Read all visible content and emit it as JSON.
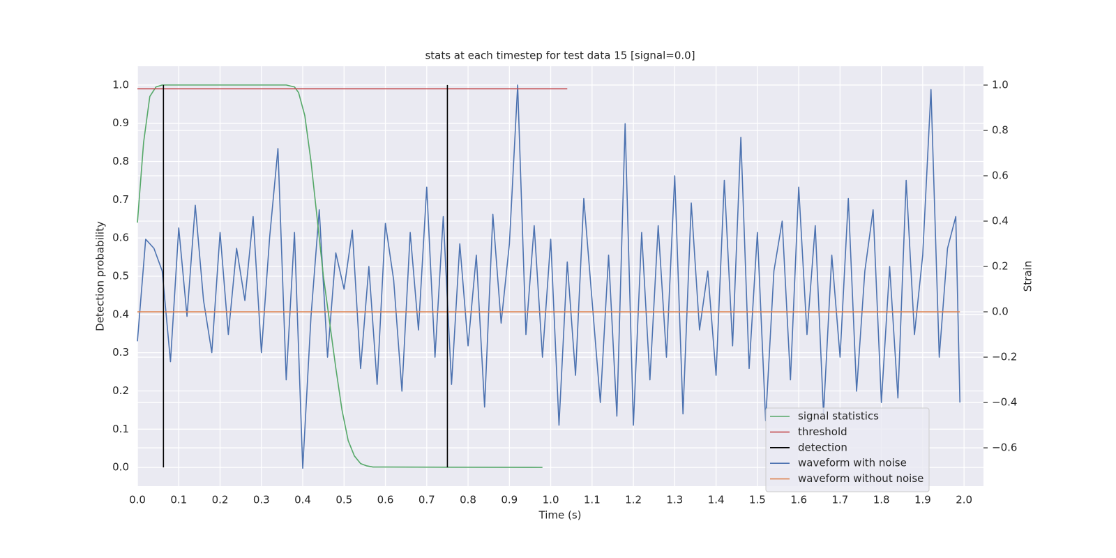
{
  "chart_data": {
    "type": "line",
    "title": "stats at each timestep for test data 15 [signal=0.0]",
    "x_label": "Time (s)",
    "y_label": "Detection probability",
    "y2_label": "Strain",
    "xlim": [
      0,
      2.047
    ],
    "ylim": [
      -0.049,
      1.049
    ],
    "y2lim": [
      -0.769,
      1.083
    ],
    "xticks": [
      {
        "value": 0,
        "label": "0.0"
      },
      0.1,
      0.2,
      0.3,
      0.4,
      0.5,
      0.6,
      0.7,
      0.8,
      0.9,
      {
        "value": 1,
        "label": "1.0"
      },
      1.1,
      1.2,
      1.3,
      1.4,
      1.5,
      1.6,
      1.7,
      1.8,
      1.9,
      {
        "value": 2,
        "label": "2.0"
      }
    ],
    "yticks": [
      {
        "value": 0,
        "label": "0.0"
      },
      0.1,
      0.2,
      0.3,
      0.4,
      0.5,
      0.6,
      0.7,
      0.8,
      0.9,
      {
        "value": 1,
        "label": "1.0"
      }
    ],
    "y2ticks": [
      {
        "value": -0.6,
        "label": "−0.6"
      },
      {
        "value": -0.4,
        "label": "−0.4"
      },
      {
        "value": -0.2,
        "label": "−0.2"
      },
      {
        "value": 0,
        "label": "0.0"
      },
      0.2,
      0.4,
      0.6,
      0.8,
      {
        "value": 1,
        "label": "1.0"
      }
    ],
    "grid": true,
    "legend": "lower right",
    "series": [
      {
        "name": "signal statistics",
        "color": "#55a868",
        "x": [
          0,
          0.015,
          0.03,
          0.045,
          0.06,
          0.1,
          0.2,
          0.3,
          0.36,
          0.38,
          0.39,
          0.405,
          0.42,
          0.435,
          0.45,
          0.465,
          0.48,
          0.495,
          0.51,
          0.525,
          0.54,
          0.555,
          0.57,
          0.6,
          0.98
        ],
        "values": [
          0.64,
          0.85,
          0.97,
          0.995,
          1.0,
          1.0,
          1.0,
          1.0,
          1.0,
          0.995,
          0.98,
          0.92,
          0.8,
          0.65,
          0.5,
          0.38,
          0.26,
          0.15,
          0.07,
          0.03,
          0.01,
          0.004,
          0.001,
          0.001,
          0
        ]
      },
      {
        "name": "threshold",
        "color": "#c44e52",
        "x": [
          0,
          1.04
        ],
        "values": [
          0.99,
          0.99
        ]
      },
      {
        "name": "detection",
        "color": "#000000",
        "x": [
          0.063,
          0.063,
          0.063,
          0.75,
          0.75
        ],
        "values": [
          0,
          1,
          null,
          0,
          1
        ]
      },
      {
        "name": "waveform with noise",
        "color": "#4c72b0",
        "axis": "y2",
        "x": [
          0,
          0.02,
          0.04,
          0.06,
          0.08,
          0.1,
          0.12,
          0.14,
          0.16,
          0.18,
          0.2,
          0.22,
          0.24,
          0.26,
          0.28,
          0.3,
          0.32,
          0.34,
          0.36,
          0.38,
          0.4,
          0.42,
          0.44,
          0.46,
          0.48,
          0.5,
          0.52,
          0.54,
          0.56,
          0.58,
          0.6,
          0.62,
          0.64,
          0.66,
          0.68,
          0.7,
          0.72,
          0.74,
          0.76,
          0.78,
          0.8,
          0.82,
          0.84,
          0.86,
          0.88,
          0.9,
          0.92,
          0.94,
          0.96,
          0.98,
          1.0,
          1.02,
          1.04,
          1.06,
          1.08,
          1.1,
          1.12,
          1.14,
          1.16,
          1.18,
          1.2,
          1.22,
          1.24,
          1.26,
          1.28,
          1.3,
          1.32,
          1.34,
          1.36,
          1.38,
          1.4,
          1.42,
          1.44,
          1.46,
          1.48,
          1.5,
          1.52,
          1.54,
          1.56,
          1.58,
          1.6,
          1.62,
          1.64,
          1.66,
          1.68,
          1.7,
          1.72,
          1.74,
          1.76,
          1.78,
          1.8,
          1.82,
          1.84,
          1.86,
          1.88,
          1.9,
          1.92,
          1.94,
          1.96,
          1.98,
          1.99
        ],
        "values": [
          -0.13,
          0.32,
          0.28,
          0.18,
          -0.22,
          0.37,
          -0.02,
          0.47,
          0.05,
          -0.18,
          0.35,
          -0.1,
          0.28,
          0.05,
          0.42,
          -0.18,
          0.33,
          0.72,
          -0.3,
          0.35,
          -0.69,
          -0.02,
          0.45,
          -0.2,
          0.26,
          0.1,
          0.36,
          -0.25,
          0.2,
          -0.32,
          0.39,
          0.14,
          -0.35,
          0.35,
          -0.08,
          0.55,
          -0.2,
          0.42,
          -0.32,
          0.3,
          -0.15,
          0.25,
          -0.42,
          0.43,
          -0.05,
          0.3,
          1.0,
          -0.1,
          0.38,
          -0.2,
          0.32,
          -0.5,
          0.22,
          -0.28,
          0.5,
          0.05,
          -0.4,
          0.25,
          -0.46,
          0.83,
          -0.5,
          0.35,
          -0.3,
          0.38,
          -0.2,
          0.6,
          -0.45,
          0.48,
          -0.08,
          0.18,
          -0.28,
          0.58,
          -0.15,
          0.77,
          -0.25,
          0.35,
          -0.48,
          0.18,
          0.4,
          -0.3,
          0.55,
          -0.1,
          0.38,
          -0.45,
          0.25,
          -0.2,
          0.5,
          -0.35,
          0.18,
          0.45,
          -0.4,
          0.2,
          -0.38,
          0.58,
          -0.1,
          0.25,
          0.98,
          -0.2,
          0.28,
          0.42,
          -0.4
        ]
      },
      {
        "name": "waveform without noise",
        "color": "#dd8452",
        "axis": "y2",
        "x": [
          0,
          1.99
        ],
        "values": [
          0,
          0
        ]
      }
    ]
  }
}
